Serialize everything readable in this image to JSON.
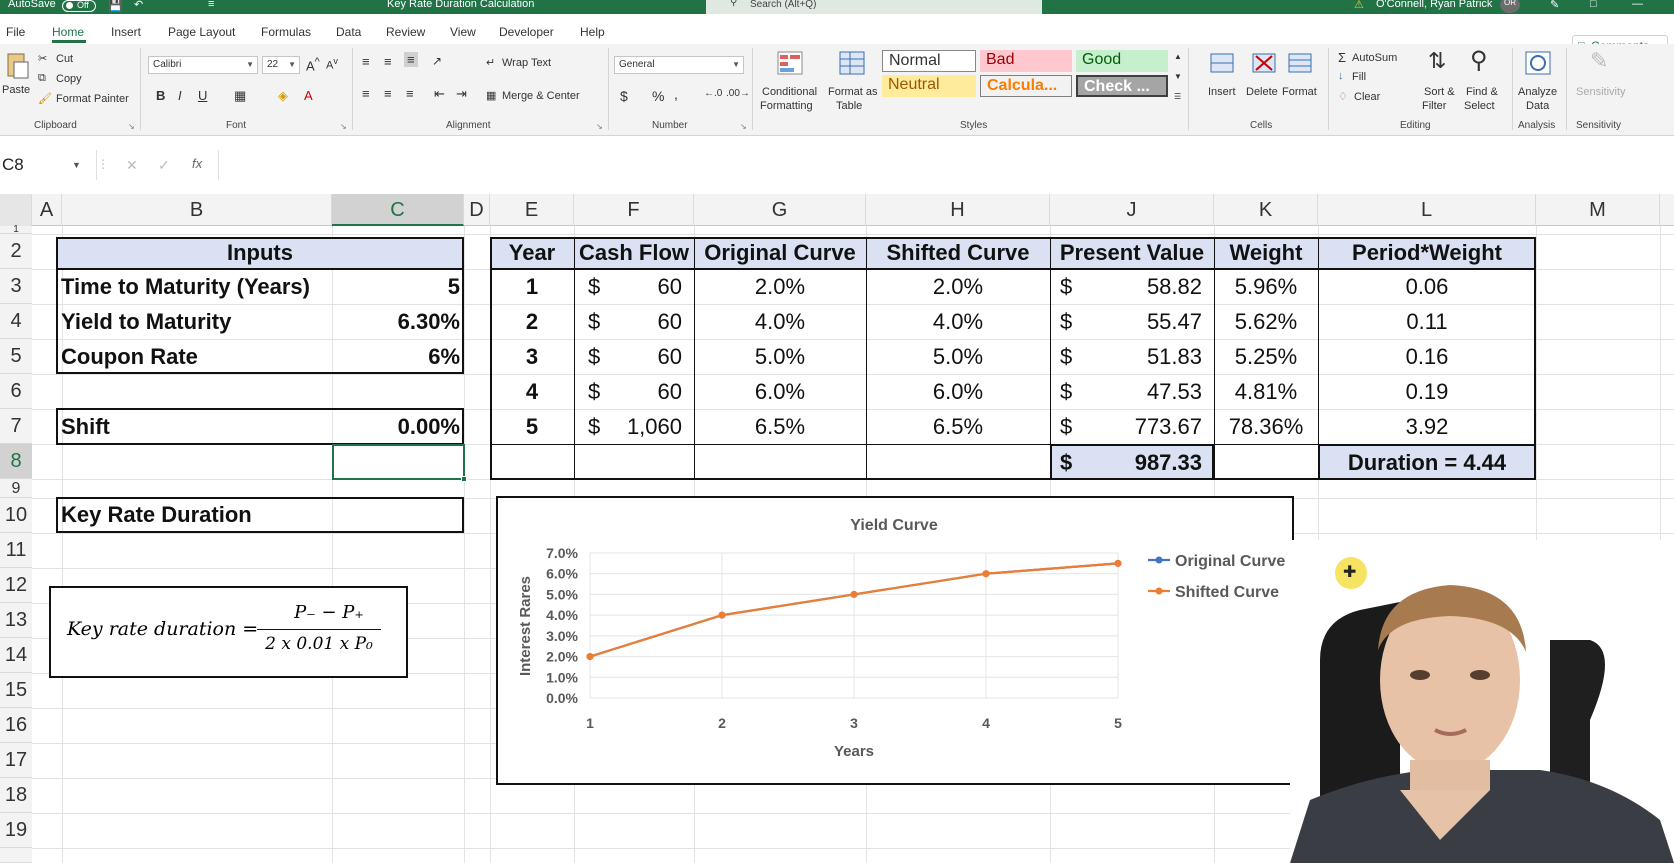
{
  "titlebar": {
    "autosave_label": "AutoSave",
    "autosave_state": "Off",
    "doc_title": "Key Rate Duration Calculation",
    "search_placeholder": "Search (Alt+Q)",
    "user_name": "O'Connell, Ryan Patrick",
    "user_initials": "OR"
  },
  "tabs": [
    "File",
    "Home",
    "Insert",
    "Page Layout",
    "Formulas",
    "Data",
    "Review",
    "View",
    "Developer",
    "Help"
  ],
  "comments_label": "Comments",
  "ribbon": {
    "clipboard": {
      "paste": "Paste",
      "cut": "Cut",
      "copy": "Copy",
      "format_painter": "Format Painter",
      "label": "Clipboard"
    },
    "font": {
      "name": "Calibri",
      "size": "22",
      "label": "Font",
      "bold": "B",
      "italic": "I",
      "underline": "U"
    },
    "alignment": {
      "wrap": "Wrap Text",
      "merge": "Merge & Center",
      "label": "Alignment"
    },
    "number": {
      "format": "General",
      "currency": "$",
      "percent": "%",
      "comma": ",",
      "label": "Number"
    },
    "styles": {
      "conditional": "Conditional",
      "conditional2": "Formatting",
      "format_as": "Format as",
      "format_as2": "Table",
      "normal": "Normal",
      "bad": "Bad",
      "good": "Good",
      "neutral": "Neutral",
      "calc": "Calcula...",
      "check": "Check ...",
      "label": "Styles"
    },
    "cells": {
      "insert": "Insert",
      "delete": "Delete",
      "format": "Format",
      "label": "Cells"
    },
    "editing": {
      "autosum": "AutoSum",
      "fill": "Fill",
      "clear": "Clear",
      "sort": "Sort &",
      "sort2": "Filter",
      "find": "Find &",
      "find2": "Select",
      "label": "Editing"
    },
    "analysis": {
      "analyze": "Analyze",
      "analyze2": "Data",
      "label": "Analysis"
    },
    "sensitivity": {
      "btn": "Sensitivity",
      "label": "Sensitivity"
    },
    "colors": {
      "accent": "#217346",
      "bad_bg": "#ffc7ce",
      "bad_fg": "#9c0006",
      "good_bg": "#c6efce",
      "good_fg": "#006100",
      "neutral_bg": "#ffeb9c",
      "neutral_fg": "#9c5700",
      "calc_fg": "#fa7d00",
      "check_bg": "#a5a5a5"
    }
  },
  "formula_bar": {
    "name_box": "C8",
    "fx": "fx",
    "value": ""
  },
  "columns": [
    "A",
    "B",
    "C",
    "D",
    "E",
    "F",
    "G",
    "H",
    "J",
    "K",
    "L",
    "M"
  ],
  "selected_column": "C",
  "rows": [
    "1",
    "2",
    "3",
    "4",
    "5",
    "6",
    "7",
    "8",
    "9",
    "10",
    "11",
    "12",
    "13",
    "14",
    "15",
    "16",
    "17",
    "18",
    "19"
  ],
  "selected_row": "8",
  "inputs": {
    "header": "Inputs",
    "ttm_label": "Time to Maturity (Years)",
    "ttm_value": "5",
    "ytm_label": "Yield to Maturity",
    "ytm_value": "6.30%",
    "coupon_label": "Coupon Rate",
    "coupon_value": "6%",
    "shift_label": "Shift",
    "shift_value": "0.00%",
    "krd_label": "Key Rate Duration"
  },
  "table": {
    "headers": [
      "Year",
      "Cash Flow",
      "Original Curve",
      "Shifted Curve",
      "Present Value",
      "Weight",
      "Period*Weight"
    ],
    "rows": [
      {
        "year": "1",
        "cf_sym": "$",
        "cf": "60",
        "orig": "2.0%",
        "shift": "2.0%",
        "pv_sym": "$",
        "pv": "58.82",
        "weight": "5.96%",
        "pw": "0.06"
      },
      {
        "year": "2",
        "cf_sym": "$",
        "cf": "60",
        "orig": "4.0%",
        "shift": "4.0%",
        "pv_sym": "$",
        "pv": "55.47",
        "weight": "5.62%",
        "pw": "0.11"
      },
      {
        "year": "3",
        "cf_sym": "$",
        "cf": "60",
        "orig": "5.0%",
        "shift": "5.0%",
        "pv_sym": "$",
        "pv": "51.83",
        "weight": "5.25%",
        "pw": "0.16"
      },
      {
        "year": "4",
        "cf_sym": "$",
        "cf": "60",
        "orig": "6.0%",
        "shift": "6.0%",
        "pv_sym": "$",
        "pv": "47.53",
        "weight": "4.81%",
        "pw": "0.19"
      },
      {
        "year": "5",
        "cf_sym": "$",
        "cf": "1,060",
        "orig": "6.5%",
        "shift": "6.5%",
        "pv_sym": "$",
        "pv": "773.67",
        "weight": "78.36%",
        "pw": "3.92"
      }
    ],
    "total_sym": "$",
    "total_pv": "987.33",
    "duration": "Duration = 4.44"
  },
  "formula_box": {
    "lhs": "Key rate duration =",
    "numerator": "P₋ − P₊",
    "denominator": "2 x 0.01 x P₀"
  },
  "chart_data": {
    "type": "line",
    "title": "Yield Curve",
    "xlabel": "Years",
    "ylabel": "Interest Rares",
    "x": [
      1,
      2,
      3,
      4,
      5
    ],
    "ylim": [
      0,
      0.07
    ],
    "yticks": [
      "0.0%",
      "1.0%",
      "2.0%",
      "3.0%",
      "4.0%",
      "5.0%",
      "6.0%",
      "7.0%"
    ],
    "xticks": [
      "1",
      "2",
      "3",
      "4",
      "5"
    ],
    "grid": true,
    "legend": "right",
    "series": [
      {
        "name": "Original Curve",
        "values": [
          0.02,
          0.04,
          0.05,
          0.06,
          0.065
        ],
        "color": "#4472c4"
      },
      {
        "name": "Shifted Curve",
        "values": [
          0.02,
          0.04,
          0.05,
          0.06,
          0.065
        ],
        "color": "#ed7d31"
      }
    ]
  }
}
